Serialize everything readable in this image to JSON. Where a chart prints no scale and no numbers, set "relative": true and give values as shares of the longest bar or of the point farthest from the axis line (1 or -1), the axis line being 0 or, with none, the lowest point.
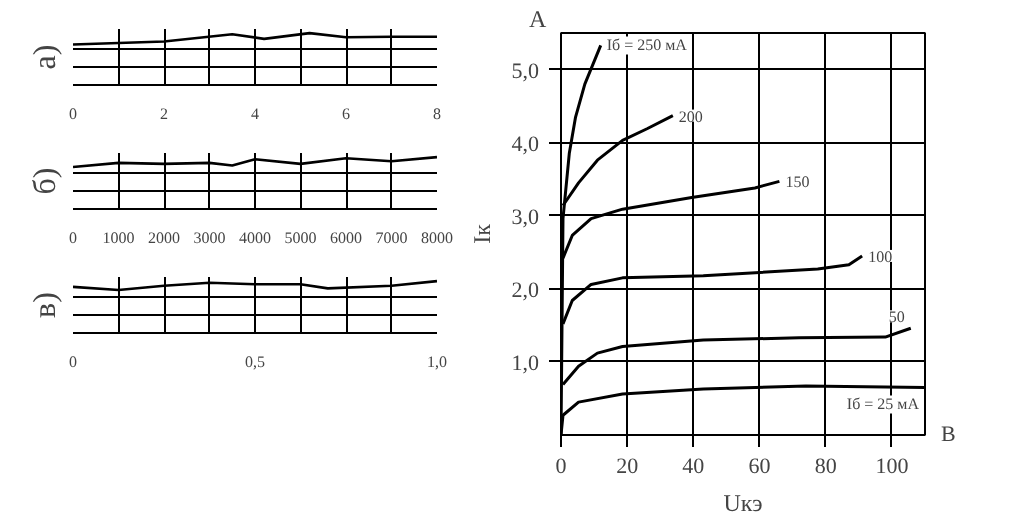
{
  "chart_data": [
    {
      "type": "line",
      "relative": true,
      "title": "а)",
      "xlim": [
        0,
        8
      ],
      "xticks": [
        0,
        {
          "value": 1,
          "label": null
        },
        2,
        {
          "value": 3,
          "label": null
        },
        4,
        {
          "value": 5,
          "label": null
        },
        6,
        {
          "value": 7,
          "label": null
        },
        8
      ],
      "grid": true,
      "series": [
        {
          "color": "#000000",
          "x": [
            0,
            2,
            3.5,
            4.2,
            5.2,
            6,
            7,
            8
          ],
          "values": [
            0.78,
            0.84,
            0.98,
            0.89,
            1.0,
            0.92,
            0.93,
            0.93
          ]
        }
      ]
    },
    {
      "type": "line",
      "relative": true,
      "title": "б)",
      "xlim": [
        0,
        8000
      ],
      "xticks": [
        0,
        1000,
        2000,
        3000,
        4000,
        5000,
        6000,
        7000,
        8000
      ],
      "grid": true,
      "series": [
        {
          "color": "#000000",
          "x": [
            0,
            1000,
            2000,
            3000,
            3500,
            4000,
            5000,
            6000,
            7000,
            8000
          ],
          "values": [
            0.81,
            0.89,
            0.87,
            0.89,
            0.84,
            0.96,
            0.87,
            0.98,
            0.92,
            1.0
          ]
        }
      ]
    },
    {
      "type": "line",
      "relative": true,
      "title": "в)",
      "xlim": [
        0,
        1
      ],
      "xticks": [
        0,
        {
          "value": 0.125,
          "label": null
        },
        {
          "value": 0.25,
          "label": null
        },
        {
          "value": 0.375,
          "label": null
        },
        {
          "value": 0.5,
          "label": "0,5"
        },
        {
          "value": 0.625,
          "label": null
        },
        {
          "value": 0.75,
          "label": null
        },
        {
          "value": 0.875,
          "label": null
        },
        {
          "value": 1,
          "label": "1,0"
        }
      ],
      "grid": true,
      "series": [
        {
          "color": "#000000",
          "x": [
            0,
            0.125,
            0.25,
            0.375,
            0.5,
            0.625,
            0.7,
            0.875,
            1
          ],
          "values": [
            0.89,
            0.83,
            0.91,
            0.97,
            0.94,
            0.94,
            0.86,
            0.91,
            1.0
          ]
        }
      ]
    },
    {
      "type": "line",
      "xlabel": "Uкэ",
      "ylabel": "Iк",
      "annotations": [
        "A",
        "B"
      ],
      "xlim": [
        0,
        110
      ],
      "ylim": [
        0,
        5.5
      ],
      "xticks": [
        0,
        20,
        40,
        60,
        80,
        100
      ],
      "yticks": [
        {
          "value": 1,
          "label": "1,0"
        },
        {
          "value": 2,
          "label": "2,0"
        },
        {
          "value": 3,
          "label": "3,0"
        },
        {
          "value": 4,
          "label": "4,0"
        },
        {
          "value": 5,
          "label": "5,0"
        }
      ],
      "grid": true,
      "legend": false,
      "marker": "none",
      "line_style": "solid",
      "series": [
        {
          "name": "Iб = 250 мА",
          "color": "#000000",
          "x": [
            0,
            0.6,
            2.5,
            4.4,
            7.2,
            12
          ],
          "values": [
            0,
            2.96,
            3.85,
            4.35,
            4.8,
            5.33
          ]
        },
        {
          "name": "200",
          "color": "#000000",
          "x": [
            0.6,
            5.3,
            11,
            18.6,
            26,
            33.8
          ],
          "values": [
            3.14,
            3.45,
            3.76,
            4.03,
            4.19,
            4.37
          ]
        },
        {
          "name": "150",
          "color": "#000000",
          "x": [
            0.6,
            3.4,
            9.1,
            18.6,
            39.5,
            58.6,
            66
          ],
          "values": [
            2.42,
            2.73,
            2.96,
            3.09,
            3.25,
            3.38,
            3.47
          ]
        },
        {
          "name": "100",
          "color": "#000000",
          "x": [
            0.6,
            3.4,
            9.1,
            18.6,
            43,
            77.6,
            87,
            91
          ],
          "values": [
            1.52,
            1.84,
            2.06,
            2.15,
            2.18,
            2.27,
            2.33,
            2.45
          ]
        },
        {
          "name": "50",
          "color": "#000000",
          "x": [
            0.6,
            5.3,
            11,
            18.6,
            43,
            72,
            98,
            105.7
          ],
          "values": [
            0.69,
            0.94,
            1.12,
            1.21,
            1.3,
            1.33,
            1.34,
            1.46
          ]
        },
        {
          "name": "Iб = 25 мА",
          "color": "#000000",
          "x": [
            0,
            0.6,
            5.3,
            18.6,
            43,
            74,
            110
          ],
          "values": [
            0,
            0.27,
            0.45,
            0.56,
            0.63,
            0.67,
            0.65
          ]
        }
      ]
    }
  ]
}
